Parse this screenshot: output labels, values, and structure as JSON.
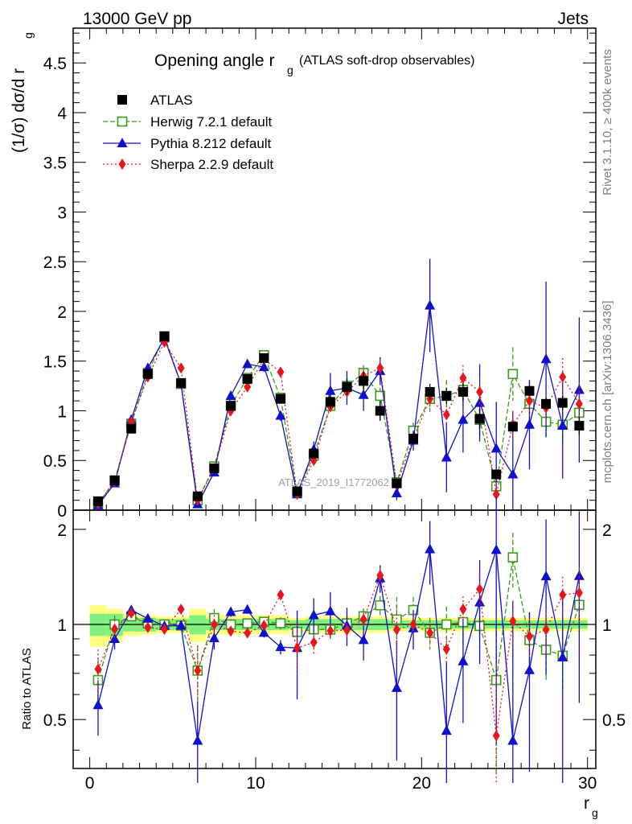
{
  "header": {
    "left": "13000 GeV pp",
    "right": "Jets"
  },
  "side_labels": {
    "rivet": "Rivet 3.1.10, ≥ 400k events",
    "mcplots": "mcplots.cern.ch [arXiv:1306.3436]"
  },
  "watermark": "ATLAS_2019_I1772062",
  "chart_data": {
    "type": "line",
    "title": "Opening angle r",
    "title_subscript": "g",
    "title_suffix": "(ATLAS soft-drop observables)",
    "ylabel": "(1/σ) dσ/d r",
    "ylabel_subscript": "g",
    "xlabel": "r",
    "xlabel_subscript": "g",
    "ratio_ylabel": "Ratio to ATLAS",
    "xlim": [
      -1,
      30.5
    ],
    "ylim": [
      0,
      4.85
    ],
    "ratio_ylim": [
      0.35,
      2.3
    ],
    "x_ticks": [
      "0",
      "10",
      "20",
      "30"
    ],
    "y_ticks": [
      "0",
      "0.5",
      "1",
      "1.5",
      "2",
      "2.5",
      "3",
      "3.5",
      "4",
      "4.5"
    ],
    "ratio_y_ticks": [
      "0.5",
      "1",
      "2"
    ],
    "x": [
      0.5,
      1.5,
      2.5,
      3.5,
      4.5,
      5.5,
      6.5,
      7.5,
      8.5,
      9.5,
      10.5,
      11.5,
      12.5,
      13.5,
      14.5,
      15.5,
      16.5,
      17.5,
      18.5,
      19.5,
      20.5,
      21.5,
      22.5,
      23.5,
      24.5,
      25.5,
      26.5,
      27.5,
      28.5,
      29.5
    ],
    "series": [
      {
        "name": "ATLAS",
        "style": "data",
        "color": "#000000",
        "values": [
          0.09,
          0.3,
          0.82,
          1.37,
          1.75,
          1.28,
          0.14,
          0.42,
          1.05,
          1.32,
          1.53,
          1.12,
          0.19,
          0.57,
          1.09,
          1.24,
          1.3,
          1.0,
          0.27,
          0.72,
          1.19,
          1.15,
          1.19,
          0.92,
          0.36,
          0.84,
          1.2,
          1.07,
          1.08,
          0.85
        ]
      },
      {
        "name": "Herwig 7.2.1 default",
        "style": "herwig",
        "color": "#3a9a1a",
        "values": [
          0.06,
          0.3,
          0.87,
          1.38,
          1.75,
          1.27,
          0.1,
          0.44,
          1.05,
          1.33,
          1.56,
          1.13,
          0.18,
          0.55,
          1.05,
          1.25,
          1.38,
          1.15,
          0.28,
          0.8,
          1.12,
          1.15,
          1.21,
          0.91,
          0.24,
          1.37,
          1.07,
          0.89,
          0.86,
          0.98
        ]
      },
      {
        "name": "Pythia 8.212 default",
        "style": "pythia",
        "color": "#1010cc",
        "values": [
          0.05,
          0.27,
          0.91,
          1.43,
          1.73,
          1.27,
          0.06,
          0.38,
          1.15,
          1.47,
          1.44,
          0.95,
          0.16,
          0.61,
          1.2,
          1.23,
          1.16,
          1.4,
          0.17,
          0.7,
          2.06,
          0.53,
          0.91,
          1.08,
          0.62,
          0.36,
          0.86,
          1.52,
          0.85,
          1.21
        ]
      },
      {
        "name": "Sherpa 2.2.9 default",
        "style": "sherpa",
        "color": "#e8141e",
        "values": [
          0.065,
          0.29,
          0.89,
          1.34,
          1.69,
          1.43,
          0.1,
          0.42,
          1.0,
          1.24,
          1.52,
          1.39,
          0.16,
          0.5,
          1.04,
          1.19,
          1.35,
          1.43,
          0.26,
          0.72,
          1.12,
          0.96,
          1.33,
          1.19,
          0.16,
          0.86,
          1.1,
          1.03,
          1.34,
          1.07
        ]
      }
    ],
    "errors": {
      "Herwig 7.2.1 default": [
        0.01,
        0.02,
        0.03,
        0.04,
        0.04,
        0.04,
        0.02,
        0.03,
        0.04,
        0.04,
        0.05,
        0.05,
        0.03,
        0.05,
        0.07,
        0.08,
        0.08,
        0.08,
        0.05,
        0.08,
        0.13,
        0.16,
        0.18,
        0.18,
        0.12,
        0.27,
        0.23,
        0.18,
        0.2,
        0.2
      ],
      "Pythia 8.212 default": [
        0.01,
        0.02,
        0.03,
        0.04,
        0.04,
        0.04,
        0.02,
        0.03,
        0.04,
        0.04,
        0.05,
        0.05,
        0.05,
        0.08,
        0.18,
        0.17,
        0.16,
        0.14,
        0.07,
        0.1,
        0.47,
        0.35,
        0.33,
        0.39,
        0.47,
        0.63,
        0.45,
        0.78,
        0.53,
        0.73
      ],
      "Sherpa 2.2.9 default": [
        0.01,
        0.02,
        0.02,
        0.04,
        0.04,
        0.04,
        0.02,
        0.03,
        0.03,
        0.04,
        0.04,
        0.04,
        0.03,
        0.04,
        0.05,
        0.06,
        0.07,
        0.08,
        0.05,
        0.06,
        0.1,
        0.09,
        0.13,
        0.14,
        0.11,
        0.14,
        0.15,
        0.17,
        0.19,
        0.21
      ]
    },
    "data_errors": [
      0.01,
      0.02,
      0.04,
      0.05,
      0.05,
      0.04,
      0.02,
      0.03,
      0.04,
      0.05,
      0.05,
      0.05,
      0.02,
      0.05,
      0.07,
      0.08,
      0.09,
      0.1,
      0.03,
      0.06,
      0.08,
      0.08,
      0.09,
      0.1,
      0.04,
      0.05,
      0.05,
      0.06,
      0.07,
      0.09
    ],
    "band_inner": [
      0.08,
      0.08,
      0.05,
      0.05,
      0.04,
      0.04,
      0.07,
      0.04,
      0.04,
      0.04,
      0.04,
      0.04,
      0.03,
      0.04,
      0.04,
      0.04,
      0.04,
      0.04,
      0.03,
      0.03,
      0.03,
      0.03,
      0.03,
      0.03,
      0.03,
      0.03,
      0.03,
      0.03,
      0.03,
      0.03
    ],
    "band_outer": [
      0.15,
      0.12,
      0.08,
      0.07,
      0.06,
      0.06,
      0.12,
      0.07,
      0.07,
      0.07,
      0.07,
      0.07,
      0.05,
      0.06,
      0.06,
      0.06,
      0.06,
      0.06,
      0.05,
      0.05,
      0.05,
      0.05,
      0.05,
      0.05,
      0.05,
      0.05,
      0.05,
      0.05,
      0.05,
      0.05
    ],
    "legend_position": "top-left"
  }
}
